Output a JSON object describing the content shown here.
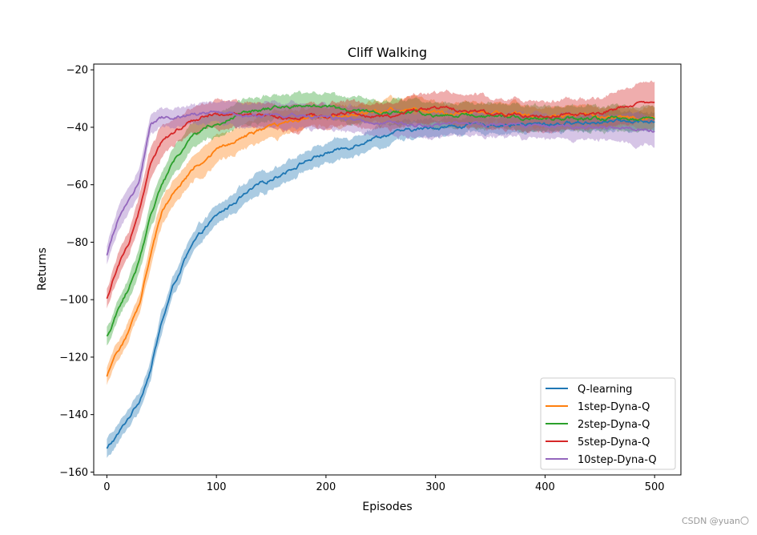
{
  "chart_data": {
    "type": "line",
    "title": "Cliff Walking",
    "xlabel": "Episodes",
    "ylabel": "Returns",
    "xlim": [
      -12,
      524
    ],
    "ylim": [
      -161,
      -18
    ],
    "xticks": [
      0,
      100,
      200,
      300,
      400,
      500
    ],
    "yticks": [
      -20,
      -40,
      -60,
      -80,
      -100,
      -120,
      -140,
      -160
    ],
    "legend_position": "lower-right",
    "series": [
      {
        "name": "Q-learning",
        "color": "#1f77b4",
        "x": [
          0,
          10,
          20,
          30,
          40,
          50,
          60,
          70,
          80,
          90,
          100,
          120,
          140,
          160,
          180,
          200,
          220,
          240,
          260,
          280,
          300,
          350,
          400,
          450,
          500
        ],
        "mean": [
          -152,
          -147,
          -141,
          -135,
          -124,
          -108,
          -96,
          -87,
          -80,
          -75,
          -71,
          -65,
          -60,
          -56,
          -52,
          -49,
          -47,
          -44,
          -42,
          -41,
          -40,
          -39,
          -39,
          -38,
          -38
        ],
        "spread": [
          3,
          3,
          3,
          3,
          3,
          3,
          3,
          3,
          3,
          3,
          3,
          3,
          3,
          3,
          3,
          3,
          3,
          3,
          3,
          3,
          2.5,
          2.5,
          2.5,
          2.5,
          3
        ]
      },
      {
        "name": "1step-Dyna-Q",
        "color": "#ff7f0e",
        "x": [
          0,
          10,
          20,
          30,
          40,
          50,
          60,
          70,
          80,
          90,
          100,
          120,
          140,
          160,
          180,
          200,
          220,
          240,
          260,
          280,
          300,
          350,
          400,
          450,
          500
        ],
        "mean": [
          -127,
          -118,
          -111,
          -101,
          -84,
          -70,
          -63,
          -58,
          -54,
          -51,
          -48,
          -44,
          -41,
          -39,
          -37,
          -36,
          -36,
          -35,
          -34,
          -34,
          -35,
          -35,
          -36,
          -36,
          -37
        ],
        "spread": [
          3,
          3,
          3,
          3,
          4,
          4,
          4,
          4,
          4,
          4,
          4,
          4,
          4,
          4,
          3,
          3,
          3,
          3,
          4,
          4,
          3,
          3,
          3,
          3,
          3
        ]
      },
      {
        "name": "2step-Dyna-Q",
        "color": "#2ca02c",
        "x": [
          0,
          10,
          20,
          30,
          40,
          50,
          60,
          70,
          80,
          90,
          100,
          120,
          140,
          160,
          180,
          200,
          220,
          240,
          260,
          280,
          300,
          350,
          400,
          450,
          500
        ],
        "mean": [
          -113,
          -104,
          -96,
          -86,
          -70,
          -60,
          -53,
          -47,
          -43,
          -40,
          -39,
          -36,
          -34,
          -33,
          -32,
          -33,
          -34,
          -35,
          -35,
          -35,
          -36,
          -36,
          -37,
          -37,
          -37
        ],
        "spread": [
          3,
          3,
          3,
          4,
          4,
          4,
          4,
          4,
          4,
          4,
          4,
          4,
          4,
          4,
          4,
          4,
          4,
          4,
          4,
          4,
          4,
          4,
          4,
          4,
          4
        ]
      },
      {
        "name": "5step-Dyna-Q",
        "color": "#d62728",
        "x": [
          0,
          10,
          20,
          30,
          40,
          50,
          60,
          70,
          80,
          90,
          100,
          120,
          140,
          160,
          180,
          200,
          220,
          240,
          260,
          280,
          300,
          350,
          400,
          450,
          500
        ],
        "mean": [
          -100,
          -88,
          -80,
          -68,
          -52,
          -45,
          -42,
          -39,
          -37,
          -36,
          -35,
          -35,
          -36,
          -37,
          -36,
          -36,
          -35,
          -36,
          -36,
          -34,
          -33,
          -35,
          -36,
          -35,
          -31
        ],
        "spread": [
          3,
          4,
          4,
          5,
          5,
          5,
          4,
          4,
          4,
          4,
          4,
          4,
          4,
          4,
          4,
          4,
          4,
          4,
          4,
          5,
          5,
          5,
          5,
          5,
          7
        ]
      },
      {
        "name": "10step-Dyna-Q",
        "color": "#9467bd",
        "x": [
          0,
          10,
          20,
          30,
          40,
          50,
          60,
          70,
          80,
          90,
          100,
          120,
          140,
          160,
          180,
          200,
          220,
          240,
          260,
          280,
          300,
          350,
          400,
          450,
          500
        ],
        "mean": [
          -85,
          -72,
          -66,
          -58,
          -39,
          -37,
          -37,
          -36,
          -35,
          -35,
          -35,
          -36,
          -36,
          -36,
          -36,
          -37,
          -37,
          -38,
          -38,
          -39,
          -39,
          -39,
          -40,
          -40,
          -41
        ],
        "spread": [
          3,
          4,
          4,
          4,
          3,
          3,
          3,
          3,
          3,
          3,
          3,
          4,
          4,
          4,
          4,
          4,
          4,
          4,
          4,
          4,
          4,
          4,
          4,
          4,
          5
        ]
      }
    ]
  },
  "watermark": "CSDN @yuan〇"
}
